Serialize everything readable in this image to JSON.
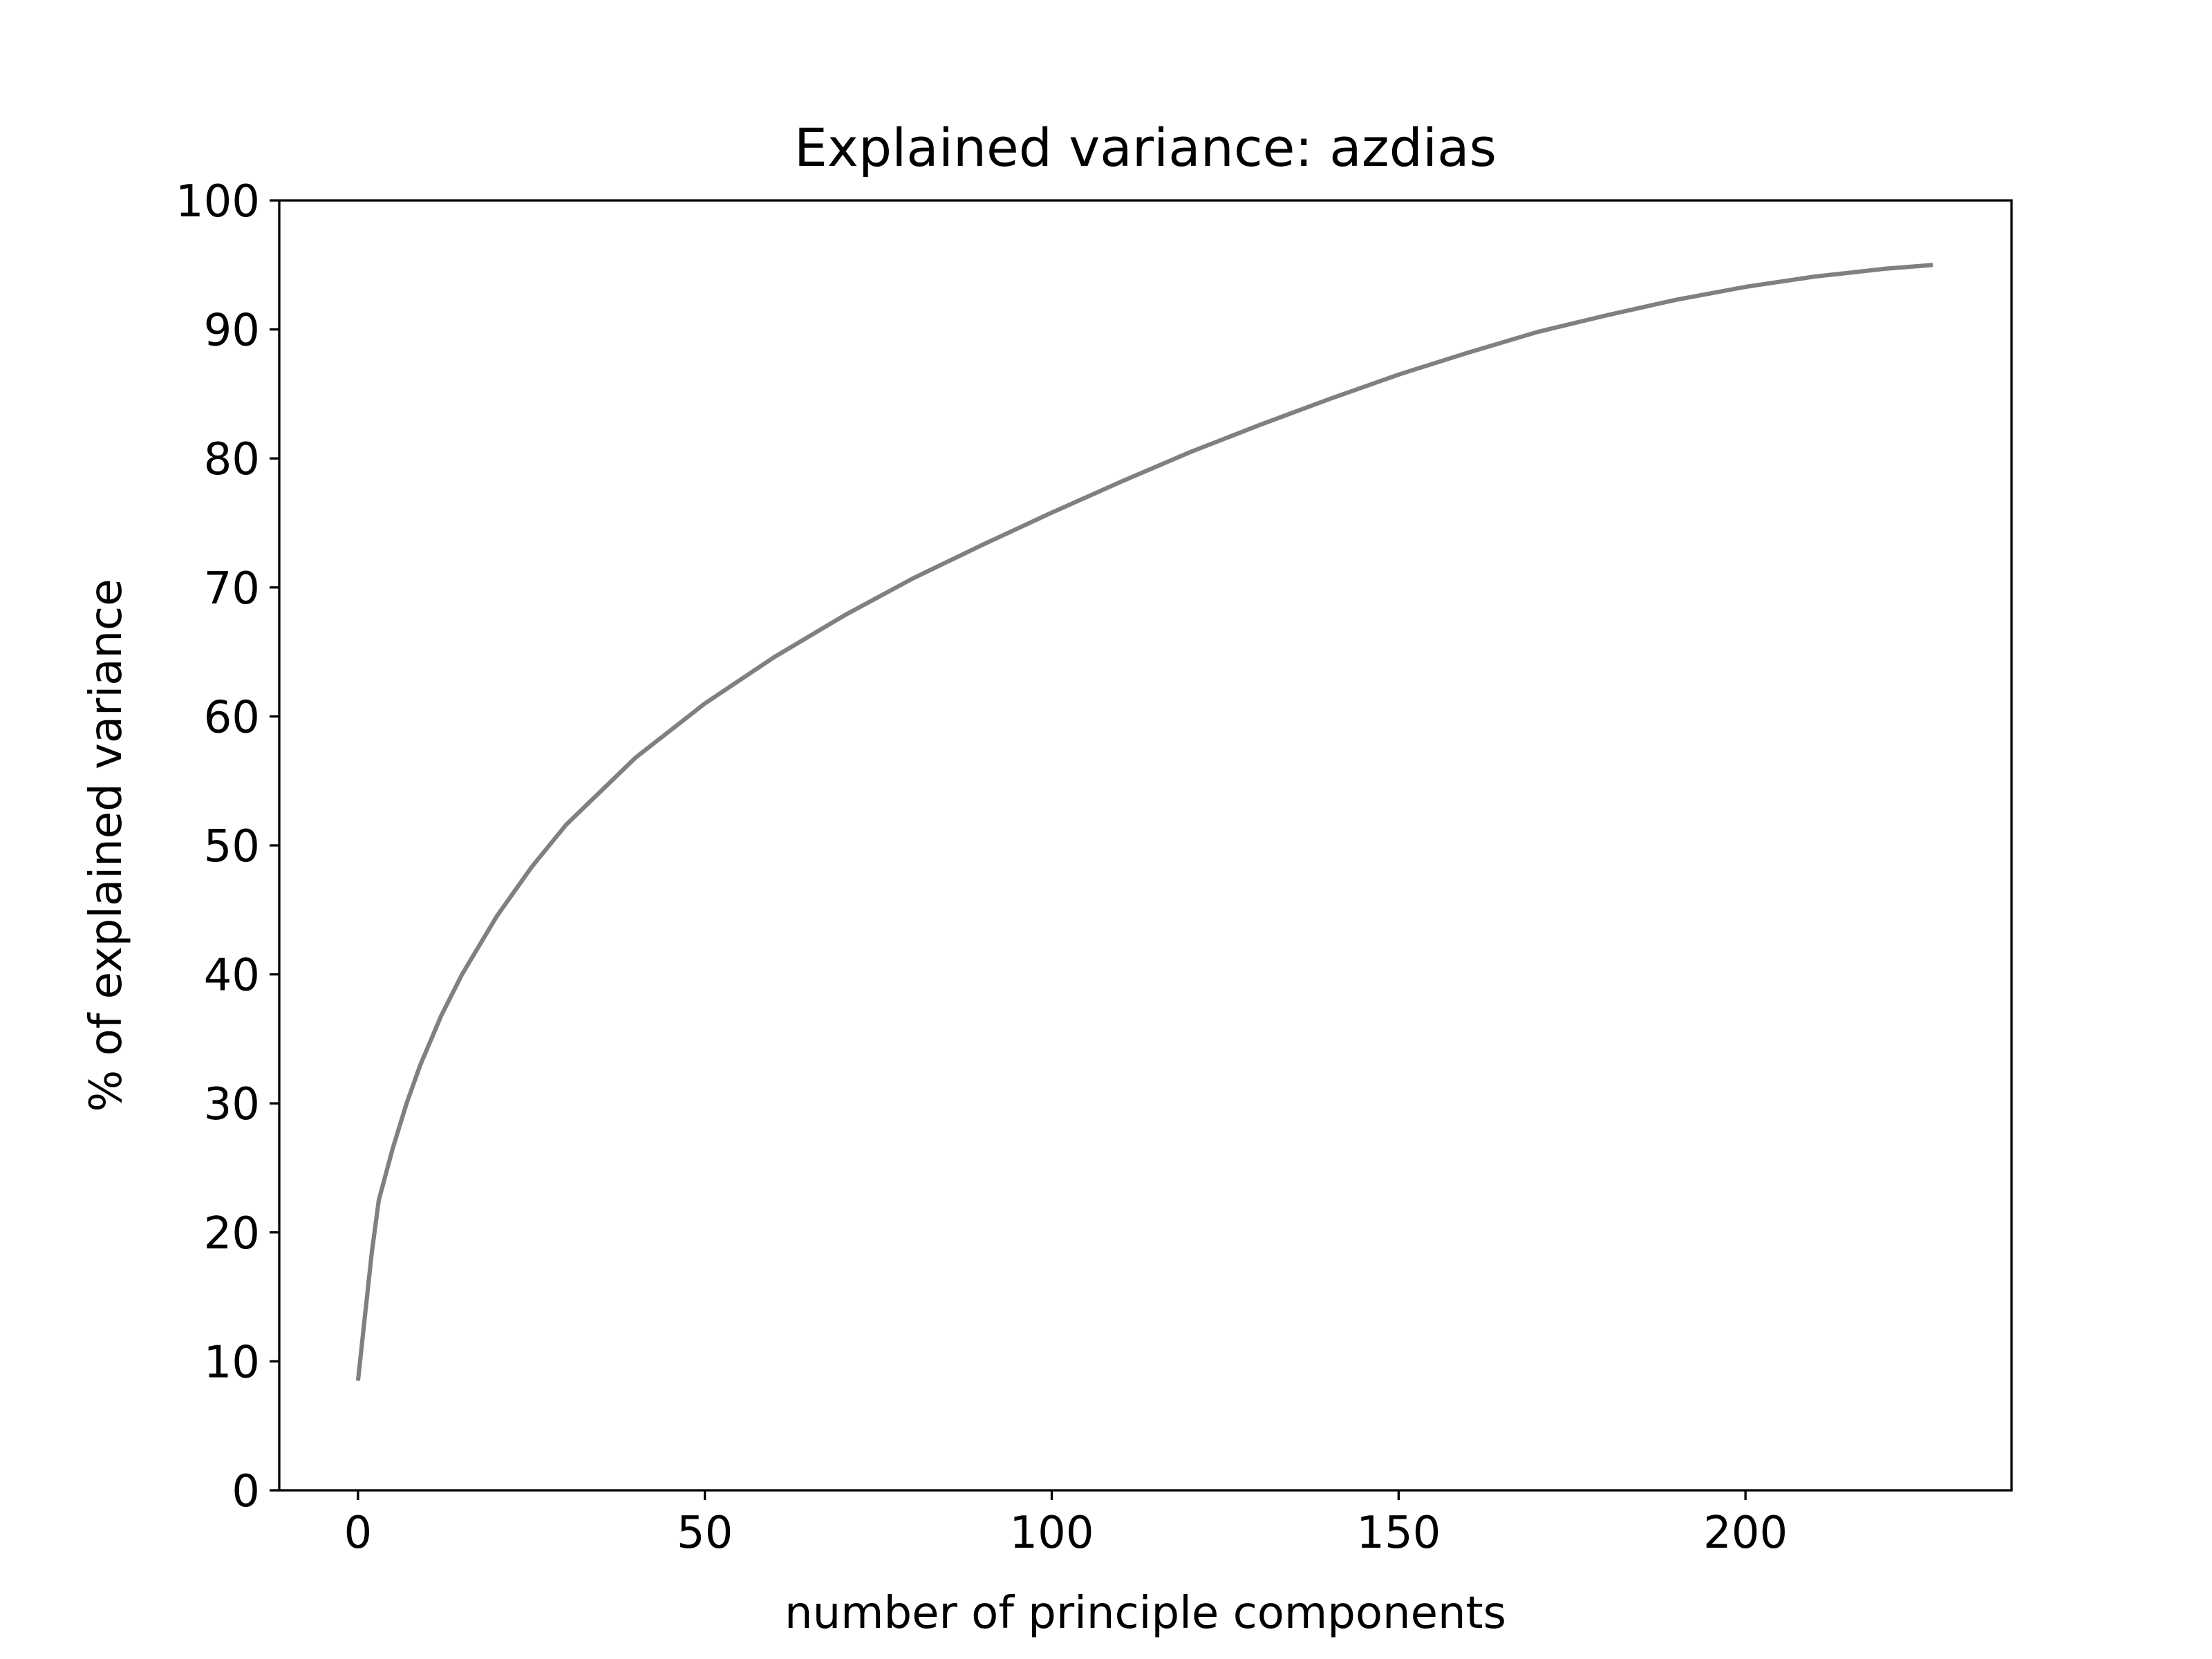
{
  "chart_data": {
    "type": "line",
    "title": "Explained variance: azdias",
    "xlabel": "number of principle components",
    "ylabel": "% of explained variance",
    "xlim": [
      -11.35,
      238.35
    ],
    "ylim": [
      0,
      100
    ],
    "xticks": [
      0,
      50,
      100,
      150,
      200
    ],
    "yticks": [
      0,
      10,
      20,
      30,
      40,
      50,
      60,
      70,
      80,
      90,
      100
    ],
    "grid": false,
    "legend": "none",
    "series": [
      {
        "color": "#808080",
        "x": [
          0,
          1,
          2,
          3,
          5,
          7,
          9,
          12,
          15,
          20,
          25,
          30,
          40,
          50,
          60,
          70,
          80,
          90,
          100,
          110,
          120,
          130,
          140,
          150,
          160,
          170,
          180,
          190,
          200,
          210,
          220,
          227
        ],
        "y": [
          8.5,
          13.5,
          18.5,
          22.5,
          26.5,
          30.0,
          33.0,
          36.8,
          40.0,
          44.5,
          48.3,
          51.6,
          56.8,
          61.0,
          64.6,
          67.8,
          70.7,
          73.3,
          75.8,
          78.2,
          80.5,
          82.6,
          84.6,
          86.5,
          88.2,
          89.8,
          91.1,
          92.3,
          93.3,
          94.1,
          94.7,
          95.0
        ]
      }
    ]
  }
}
